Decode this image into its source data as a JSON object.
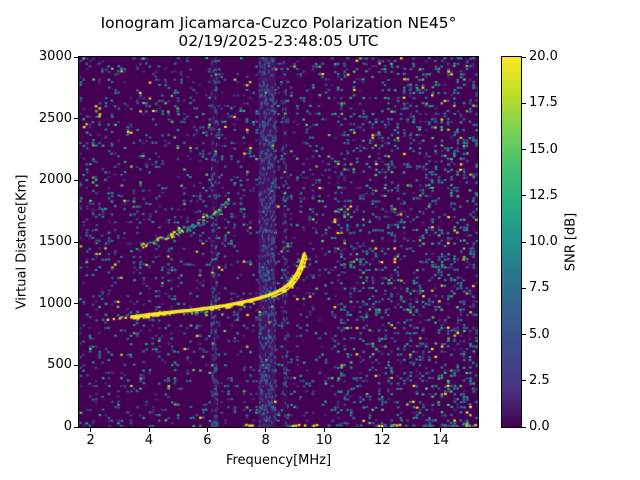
{
  "chart_data": {
    "type": "heatmap",
    "title": "Ionogram Jicamarca-Cuzco Polarization NE45°",
    "subtitle": "02/19/2025-23:48:05 UTC",
    "xlabel": "Frequency[MHz]",
    "ylabel": "Virtual Distance[Km]",
    "xlim": [
      1.6,
      15.28
    ],
    "ylim": [
      0,
      3000
    ],
    "grid": false,
    "xticks": {
      "values": [
        2,
        4,
        6,
        8,
        10,
        12,
        14
      ],
      "labels": [
        "2",
        "4",
        "6",
        "8",
        "10",
        "12",
        "14"
      ]
    },
    "yticks": {
      "values": [
        0,
        500,
        1000,
        1500,
        2000,
        2500,
        3000
      ],
      "labels": [
        "0",
        "500",
        "1000",
        "1500",
        "2000",
        "2500",
        "3000"
      ]
    },
    "colorbar": {
      "label": "SNR [dB]",
      "min": 0,
      "max": 20,
      "tick_values": [
        0,
        2.5,
        5,
        7.5,
        10,
        12.5,
        15,
        17.5,
        20
      ],
      "tick_labels": [
        "0.0",
        "2.5",
        "5.0",
        "7.5",
        "10.0",
        "12.5",
        "15.0",
        "17.5",
        "20.0"
      ],
      "colormap": "viridis",
      "gradient_stops_bottom_to_top": [
        "#440154",
        "#46327e",
        "#3f4889",
        "#365c8d",
        "#2b748e",
        "#21918c",
        "#27ad81",
        "#42be71",
        "#7ad151",
        "#bddf26",
        "#fde725"
      ]
    },
    "background_color": "#440154",
    "noise": {
      "cols": 127,
      "rows": 140,
      "base_density": 0.15,
      "colors": [
        [
          "#45317e",
          0.26
        ],
        [
          "#3b528b",
          0.2
        ],
        [
          "#2d708e",
          0.17
        ],
        [
          "#287d8e",
          0.12
        ],
        [
          "#21918c",
          0.11
        ],
        [
          "#27ad81",
          0.06
        ],
        [
          "#5ec962",
          0.04
        ],
        [
          "#aadc32",
          0.02
        ],
        [
          "#fde725",
          0.02
        ]
      ],
      "regions": [
        {
          "from_freq": 10.3,
          "to_freq": 14.2,
          "density_mult": 1.55,
          "bright_bias": 0.35
        },
        {
          "from_freq": 14.2,
          "to_freq": 15.28,
          "density_mult": 1.9,
          "bright_bias": 0.45
        }
      ]
    },
    "rfi_stripes": [
      {
        "from_freq": 7.75,
        "to_freq": 8.35,
        "wash": "rgba(86,98,171,0.20)",
        "dot_density": 0.3
      },
      {
        "from_freq": 6.1,
        "to_freq": 6.35,
        "wash": "rgba(86,98,171,0.10)",
        "dot_density": 0.22
      },
      {
        "from_freq": 8.55,
        "to_freq": 8.75,
        "wash": "rgba(86,98,171,0.08)",
        "dot_density": 0.16
      }
    ],
    "stripe_colors": [
      [
        "#3b528b",
        0.5
      ],
      [
        "#31688e",
        0.3
      ],
      [
        "#455089",
        0.2
      ]
    ],
    "main_trace": {
      "color": "#fde725",
      "halo_colors": [
        [
          "#5ec962",
          0.35
        ],
        [
          "#21918c",
          0.3
        ],
        [
          "#aadc32",
          0.2
        ],
        [
          "#fde725",
          0.15
        ]
      ],
      "lead_in_points": [
        [
          2.55,
          868
        ],
        [
          2.7,
          872
        ],
        [
          2.85,
          876
        ],
        [
          3.0,
          880
        ],
        [
          3.2,
          886
        ],
        [
          3.4,
          892
        ]
      ],
      "points": [
        [
          3.4,
          892
        ],
        [
          3.7,
          900
        ],
        [
          4.0,
          910
        ],
        [
          4.3,
          918
        ],
        [
          4.6,
          926
        ],
        [
          5.0,
          936
        ],
        [
          5.4,
          946
        ],
        [
          5.8,
          957
        ],
        [
          6.2,
          970
        ],
        [
          6.6,
          984
        ],
        [
          7.0,
          1002
        ],
        [
          7.4,
          1022
        ],
        [
          7.8,
          1046
        ],
        [
          8.1,
          1068
        ],
        [
          8.4,
          1096
        ],
        [
          8.65,
          1130
        ],
        [
          8.85,
          1170
        ],
        [
          9.0,
          1215
        ],
        [
          9.1,
          1258
        ],
        [
          9.2,
          1310
        ],
        [
          9.27,
          1360
        ],
        [
          9.32,
          1400
        ]
      ],
      "critical_frequency_mhz": 9.3,
      "split_from_freq": 8.0,
      "split_offset_freq": 0.09,
      "split_offset_km": -18
    },
    "second_trace": {
      "points": [
        [
          3.65,
          1470
        ],
        [
          3.9,
          1492
        ],
        [
          4.2,
          1515
        ],
        [
          4.5,
          1540
        ],
        [
          4.8,
          1566
        ],
        [
          5.1,
          1594
        ],
        [
          5.4,
          1625
        ],
        [
          5.7,
          1660
        ],
        [
          6.0,
          1700
        ],
        [
          6.2,
          1733
        ],
        [
          6.45,
          1775
        ],
        [
          6.6,
          1815
        ],
        [
          6.72,
          1855
        ]
      ],
      "colors_lower": [
        [
          "#fde725",
          0.45
        ],
        [
          "#aadc32",
          0.3
        ],
        [
          "#21918c",
          0.25
        ]
      ],
      "colors_upper": [
        [
          "#21918c",
          0.5
        ],
        [
          "#2d708e",
          0.3
        ],
        [
          "#aadc32",
          0.2
        ]
      ]
    },
    "bottom_echoes": [
      {
        "from_freq": 8.9,
        "to_freq": 9.75,
        "color": "#fde725",
        "density": 0.75
      },
      {
        "from_freq": 11.85,
        "to_freq": 12.6,
        "color": "#fde725",
        "density": 0.7
      },
      {
        "from_freq": 7.3,
        "to_freq": 7.55,
        "color": "#fde725",
        "density": 0.5
      },
      {
        "from_freq": 14.85,
        "to_freq": 15.2,
        "color": "#fde725",
        "density": 0.6
      },
      {
        "from_freq": 10.0,
        "to_freq": 15.25,
        "color": "#27808e",
        "density": 0.3
      }
    ]
  }
}
